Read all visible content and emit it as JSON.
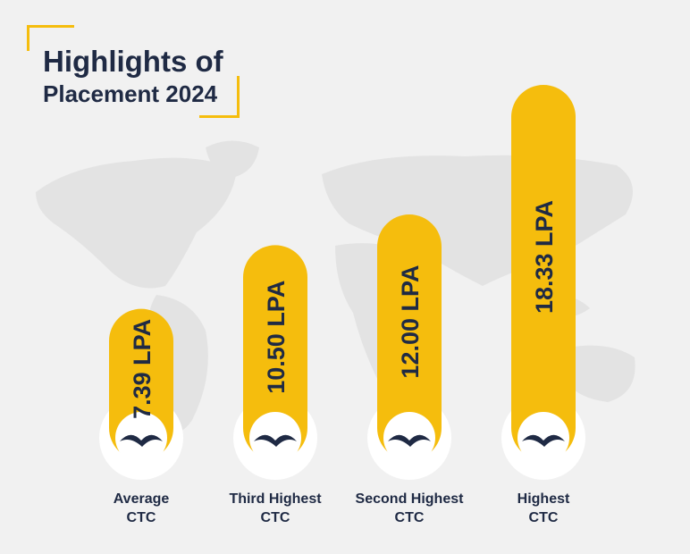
{
  "title": {
    "line1": "Highlights of",
    "line2": "Placement 2024"
  },
  "colors": {
    "bar": "#f5bd0d",
    "text": "#1f2a44",
    "map": "#e3e3e3",
    "background": "#f1f1f1"
  },
  "icon": "flying-bird-icon",
  "chart_data": {
    "type": "bar",
    "orientation": "vertical",
    "unit": "LPA",
    "categories": [
      {
        "line1": "Average",
        "line2": "CTC"
      },
      {
        "line1": "Third Highest",
        "line2": "CTC"
      },
      {
        "line1": "Second Highest",
        "line2": "CTC"
      },
      {
        "line1": "Highest",
        "line2": "CTC"
      }
    ],
    "values": [
      7.39,
      10.5,
      12.0,
      18.33
    ],
    "value_labels": [
      "7.39 LPA",
      "10.50 LPA",
      "12.00 LPA",
      "18.33 LPA"
    ]
  }
}
